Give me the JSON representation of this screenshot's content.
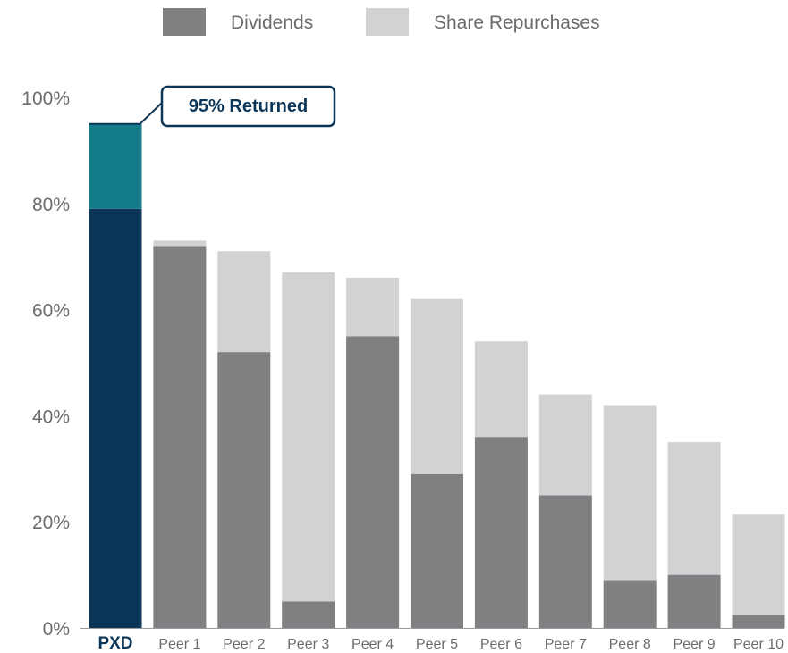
{
  "chart_data": {
    "type": "bar",
    "stacked": true,
    "categories": [
      "PXD",
      "Peer 1",
      "Peer 2",
      "Peer 3",
      "Peer 4",
      "Peer 5",
      "Peer 6",
      "Peer 7",
      "Peer 8",
      "Peer 9",
      "Peer 10"
    ],
    "highlight_category": "PXD",
    "series": [
      {
        "name": "Dividends",
        "color": "#808083",
        "highlight_color": "#0c3657",
        "values": [
          79,
          72,
          52,
          5,
          55,
          29,
          36,
          25,
          9,
          10,
          2.5
        ]
      },
      {
        "name": "Share Repurchases",
        "color": "#d1d2d4",
        "highlight_color": "#127b87",
        "values": [
          16,
          1,
          19,
          62,
          11,
          33,
          18,
          19,
          33,
          25,
          19
        ]
      }
    ],
    "yticks": [
      "0%",
      "20%",
      "40%",
      "60%",
      "80%",
      "100%"
    ],
    "ylim": [
      0,
      100
    ],
    "legend_position": "top-center",
    "grid": false,
    "annotation": {
      "text": "95% Returned",
      "value": 95,
      "category": "PXD"
    }
  }
}
